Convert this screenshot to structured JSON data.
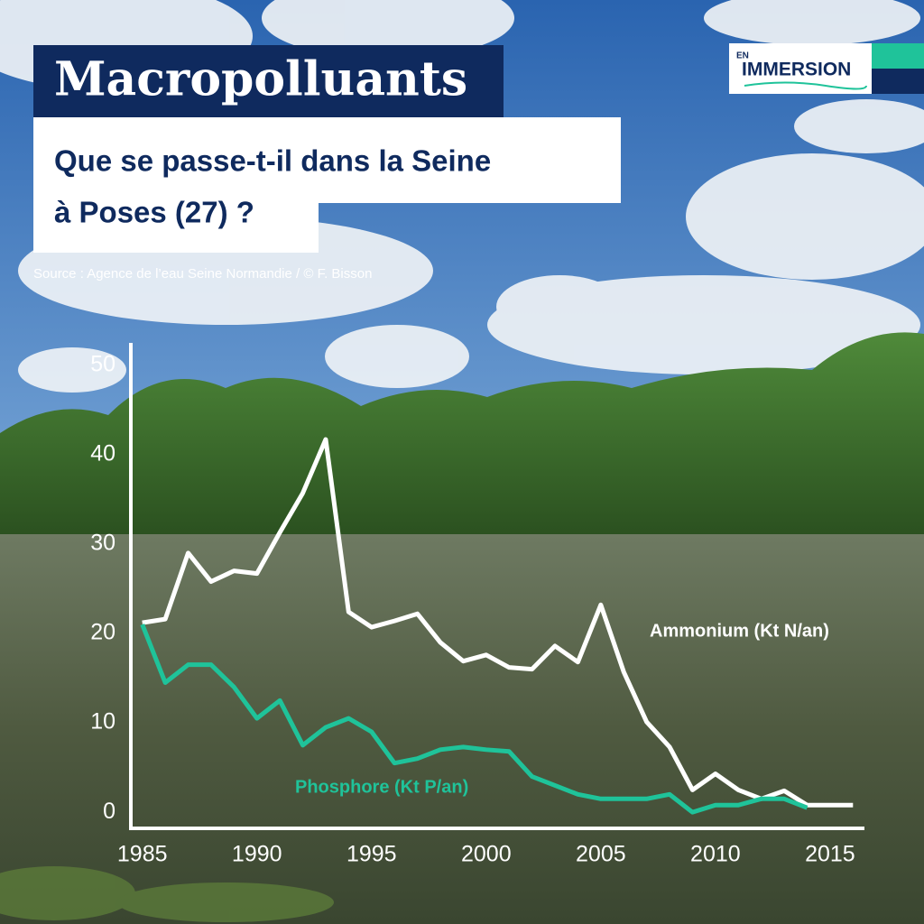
{
  "header": {
    "title": "Macropolluants",
    "subtitle_lines": [
      "Que se passe-t-il dans la Seine",
      "à Poses (27) ?"
    ],
    "source": "Source : Agence de l’eau Seine Normandie / © F. Bisson"
  },
  "logo": {
    "small": "EN",
    "big": "IMMERSION"
  },
  "chart_data": {
    "type": "line",
    "series": [
      {
        "name": "Ammonium (Kt N/an)",
        "color": "#ffffff",
        "x": [
          1985,
          1986,
          1987,
          1988,
          1989,
          1990,
          1991,
          1992,
          1993,
          1994,
          1995,
          1996,
          1997,
          1998,
          1999,
          2000,
          2001,
          2002,
          2003,
          2004,
          2005,
          2006,
          2007,
          2008,
          2009,
          2010,
          2011,
          2012,
          2013,
          2014,
          2015,
          2016
        ],
        "values": [
          21.2,
          21.6,
          29,
          25.8,
          27,
          26.7,
          31.3,
          35.7,
          41.7,
          22.4,
          20.7,
          21.4,
          22.2,
          19,
          16.9,
          17.6,
          16.2,
          16,
          18.6,
          16.8,
          23.2,
          15.7,
          10.1,
          7.3,
          2.5,
          4.3,
          2.5,
          1.5,
          2.4,
          0.8,
          0.8,
          0.8
        ]
      },
      {
        "name": "Phosphore (Kt P/an)",
        "color": "#1fc39a",
        "x": [
          1985,
          1986,
          1987,
          1988,
          1989,
          1990,
          1991,
          1992,
          1993,
          1994,
          1995,
          1996,
          1997,
          1998,
          1999,
          2000,
          2001,
          2002,
          2003,
          2004,
          2005,
          2006,
          2007,
          2008,
          2009,
          2010,
          2011,
          2012,
          2013,
          2014
        ],
        "values": [
          21,
          14.5,
          16.5,
          16.5,
          14,
          10.5,
          12.5,
          7.5,
          9.5,
          10.5,
          9,
          5.5,
          6,
          7,
          7.3,
          7,
          6.8,
          4,
          3,
          2,
          1.5,
          1.5,
          1.5,
          2,
          0,
          0.8,
          0.8,
          1.5,
          1.5,
          0.5
        ]
      }
    ],
    "xlim": [
      1984.5,
      2016.5
    ],
    "xticks": [
      1985,
      1990,
      1995,
      2000,
      2005,
      2010,
      2015
    ],
    "ylim": [
      -1.8,
      52.5
    ],
    "yticks": [
      0,
      10,
      20,
      30,
      40,
      50
    ]
  }
}
